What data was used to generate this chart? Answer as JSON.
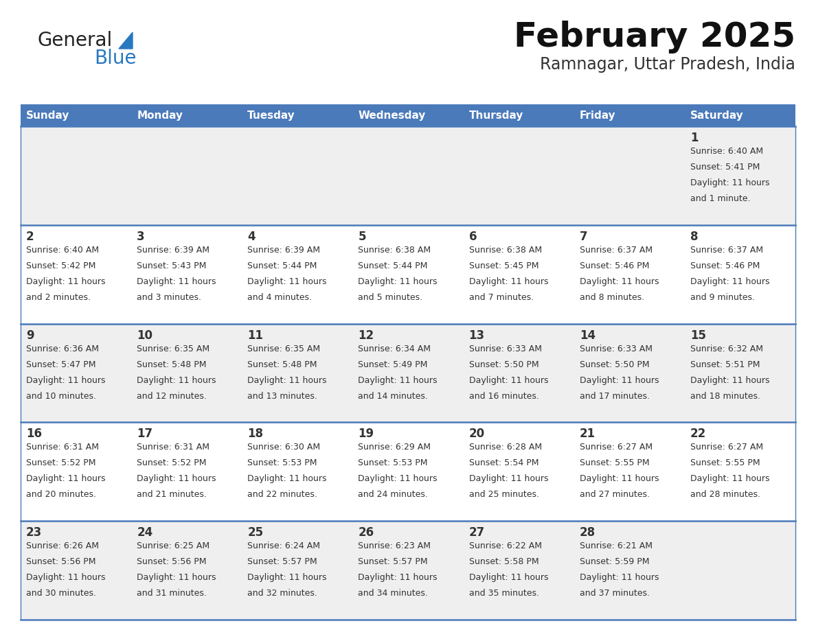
{
  "title": "February 2025",
  "subtitle": "Ramnagar, Uttar Pradesh, India",
  "header_bg": "#4a7aba",
  "header_text_color": "#ffffff",
  "day_names": [
    "Sunday",
    "Monday",
    "Tuesday",
    "Wednesday",
    "Thursday",
    "Friday",
    "Saturday"
  ],
  "row_bg_odd": "#efefef",
  "row_bg_even": "#ffffff",
  "cell_border_color": "#4a7aba",
  "day_num_color": "#333333",
  "info_text_color": "#333333",
  "title_color": "#111111",
  "subtitle_color": "#333333",
  "general_blue_text": "#222222",
  "general_blue_accent": "#2878c0",
  "calendar_data": [
    [
      null,
      null,
      null,
      null,
      null,
      null,
      {
        "day": 1,
        "sunrise": "6:40 AM",
        "sunset": "5:41 PM",
        "daylight": "11 hours",
        "daylight2": "and 1 minute."
      }
    ],
    [
      {
        "day": 2,
        "sunrise": "6:40 AM",
        "sunset": "5:42 PM",
        "daylight": "11 hours",
        "daylight2": "and 2 minutes."
      },
      {
        "day": 3,
        "sunrise": "6:39 AM",
        "sunset": "5:43 PM",
        "daylight": "11 hours",
        "daylight2": "and 3 minutes."
      },
      {
        "day": 4,
        "sunrise": "6:39 AM",
        "sunset": "5:44 PM",
        "daylight": "11 hours",
        "daylight2": "and 4 minutes."
      },
      {
        "day": 5,
        "sunrise": "6:38 AM",
        "sunset": "5:44 PM",
        "daylight": "11 hours",
        "daylight2": "and 5 minutes."
      },
      {
        "day": 6,
        "sunrise": "6:38 AM",
        "sunset": "5:45 PM",
        "daylight": "11 hours",
        "daylight2": "and 7 minutes."
      },
      {
        "day": 7,
        "sunrise": "6:37 AM",
        "sunset": "5:46 PM",
        "daylight": "11 hours",
        "daylight2": "and 8 minutes."
      },
      {
        "day": 8,
        "sunrise": "6:37 AM",
        "sunset": "5:46 PM",
        "daylight": "11 hours",
        "daylight2": "and 9 minutes."
      }
    ],
    [
      {
        "day": 9,
        "sunrise": "6:36 AM",
        "sunset": "5:47 PM",
        "daylight": "11 hours",
        "daylight2": "and 10 minutes."
      },
      {
        "day": 10,
        "sunrise": "6:35 AM",
        "sunset": "5:48 PM",
        "daylight": "11 hours",
        "daylight2": "and 12 minutes."
      },
      {
        "day": 11,
        "sunrise": "6:35 AM",
        "sunset": "5:48 PM",
        "daylight": "11 hours",
        "daylight2": "and 13 minutes."
      },
      {
        "day": 12,
        "sunrise": "6:34 AM",
        "sunset": "5:49 PM",
        "daylight": "11 hours",
        "daylight2": "and 14 minutes."
      },
      {
        "day": 13,
        "sunrise": "6:33 AM",
        "sunset": "5:50 PM",
        "daylight": "11 hours",
        "daylight2": "and 16 minutes."
      },
      {
        "day": 14,
        "sunrise": "6:33 AM",
        "sunset": "5:50 PM",
        "daylight": "11 hours",
        "daylight2": "and 17 minutes."
      },
      {
        "day": 15,
        "sunrise": "6:32 AM",
        "sunset": "5:51 PM",
        "daylight": "11 hours",
        "daylight2": "and 18 minutes."
      }
    ],
    [
      {
        "day": 16,
        "sunrise": "6:31 AM",
        "sunset": "5:52 PM",
        "daylight": "11 hours",
        "daylight2": "and 20 minutes."
      },
      {
        "day": 17,
        "sunrise": "6:31 AM",
        "sunset": "5:52 PM",
        "daylight": "11 hours",
        "daylight2": "and 21 minutes."
      },
      {
        "day": 18,
        "sunrise": "6:30 AM",
        "sunset": "5:53 PM",
        "daylight": "11 hours",
        "daylight2": "and 22 minutes."
      },
      {
        "day": 19,
        "sunrise": "6:29 AM",
        "sunset": "5:53 PM",
        "daylight": "11 hours",
        "daylight2": "and 24 minutes."
      },
      {
        "day": 20,
        "sunrise": "6:28 AM",
        "sunset": "5:54 PM",
        "daylight": "11 hours",
        "daylight2": "and 25 minutes."
      },
      {
        "day": 21,
        "sunrise": "6:27 AM",
        "sunset": "5:55 PM",
        "daylight": "11 hours",
        "daylight2": "and 27 minutes."
      },
      {
        "day": 22,
        "sunrise": "6:27 AM",
        "sunset": "5:55 PM",
        "daylight": "11 hours",
        "daylight2": "and 28 minutes."
      }
    ],
    [
      {
        "day": 23,
        "sunrise": "6:26 AM",
        "sunset": "5:56 PM",
        "daylight": "11 hours",
        "daylight2": "and 30 minutes."
      },
      {
        "day": 24,
        "sunrise": "6:25 AM",
        "sunset": "5:56 PM",
        "daylight": "11 hours",
        "daylight2": "and 31 minutes."
      },
      {
        "day": 25,
        "sunrise": "6:24 AM",
        "sunset": "5:57 PM",
        "daylight": "11 hours",
        "daylight2": "and 32 minutes."
      },
      {
        "day": 26,
        "sunrise": "6:23 AM",
        "sunset": "5:57 PM",
        "daylight": "11 hours",
        "daylight2": "and 34 minutes."
      },
      {
        "day": 27,
        "sunrise": "6:22 AM",
        "sunset": "5:58 PM",
        "daylight": "11 hours",
        "daylight2": "and 35 minutes."
      },
      {
        "day": 28,
        "sunrise": "6:21 AM",
        "sunset": "5:59 PM",
        "daylight": "11 hours",
        "daylight2": "and 37 minutes."
      },
      null
    ]
  ]
}
